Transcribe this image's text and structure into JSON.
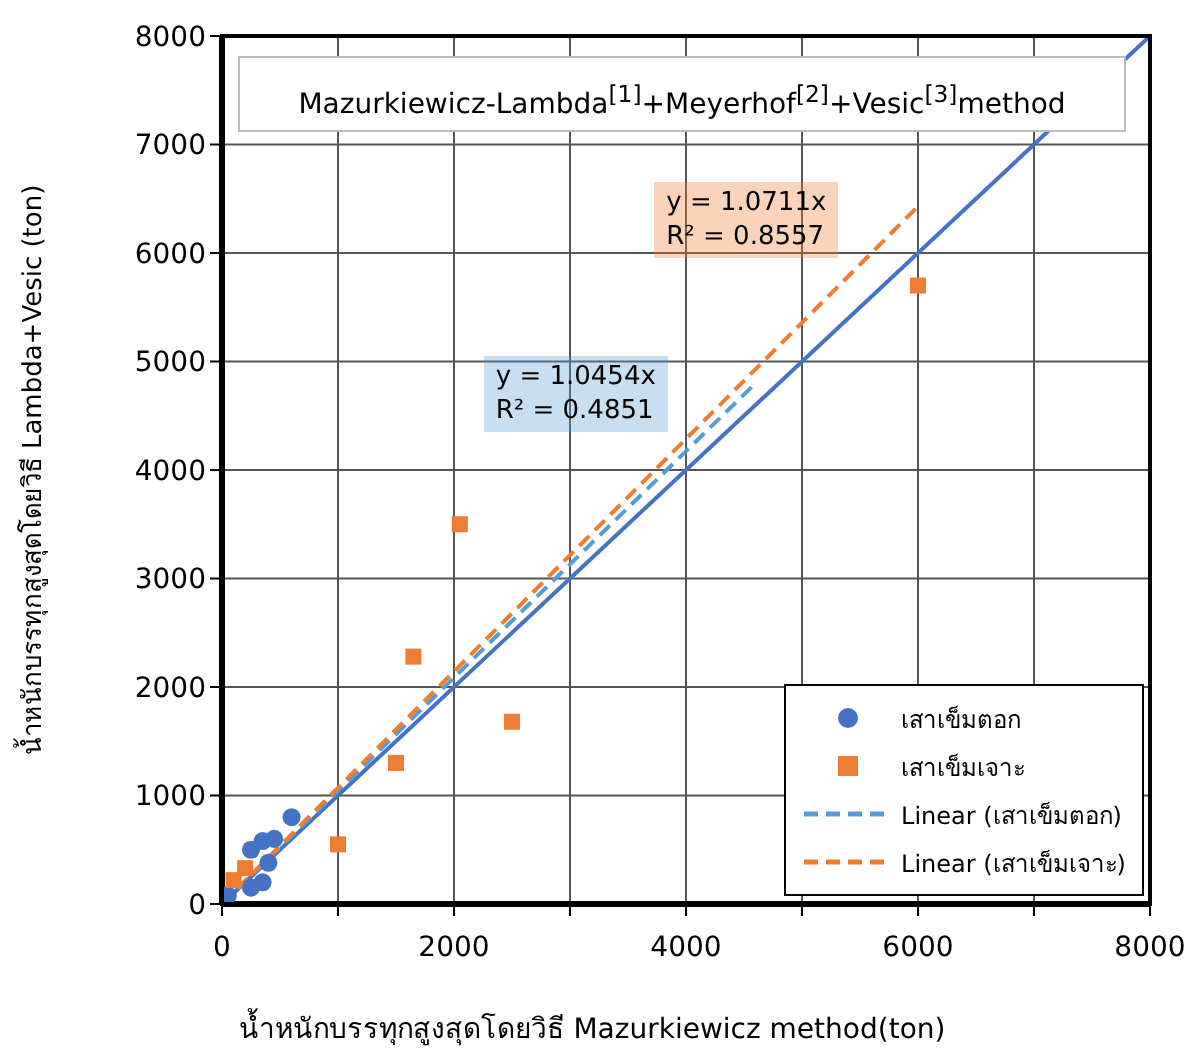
{
  "chart_data": {
    "type": "scatter",
    "title": "Mazurkiewicz-Lambda$^{[1]}$+Meyerhof$^{[2]}$+Vesic$^{[3]}$method",
    "xlabel": "น้ำหนักบรรทุกสูงสุดโดยวิธี Mazurkiewicz method(ton)",
    "ylabel": "น้ำหนักบรรทุกสูงสุดโดยวิธี Lambda+Vesic (ton)",
    "xlim": [
      0,
      8000
    ],
    "ylim": [
      0,
      8000
    ],
    "xticks": [
      0,
      {
        "value": 1000,
        "label": null
      },
      2000,
      {
        "value": 3000,
        "label": null
      },
      4000,
      {
        "value": 5000,
        "label": null
      },
      6000,
      {
        "value": 7000,
        "label": null
      },
      8000
    ],
    "yticks": [
      0,
      1000,
      2000,
      3000,
      4000,
      5000,
      6000,
      7000,
      8000
    ],
    "grid": true,
    "legend": "bottom right",
    "series": [
      {
        "name": "เสาเข็มตอก",
        "type": "scatter",
        "marker": "circle",
        "color": "#4472c4",
        "x": [
          50,
          250,
          350,
          450,
          400,
          350,
          600,
          250
        ],
        "values": [
          80,
          500,
          580,
          600,
          380,
          200,
          800,
          150
        ]
      },
      {
        "name": "เสาเข็มเจาะ",
        "type": "scatter",
        "marker": "square",
        "color": "#ed7d31",
        "x": [
          100,
          200,
          1000,
          1500,
          1650,
          2050,
          2500,
          6000
        ],
        "values": [
          220,
          330,
          550,
          1300,
          2280,
          3500,
          1680,
          5700
        ]
      },
      {
        "type": "line",
        "marker": "none",
        "line_style": "solid",
        "color": "#4472c4",
        "x": [
          0,
          8000
        ],
        "values": [
          0,
          8000
        ]
      },
      {
        "name": "Linear (เสาเข็มตอก)",
        "type": "line",
        "marker": "none",
        "line_style": "dashed",
        "color": "#5b9bd5",
        "x": [
          0,
          4600
        ],
        "values": [
          0,
          4800
        ]
      },
      {
        "name": "Linear (เสาเข็มเจาะ)",
        "type": "line",
        "marker": "none",
        "line_style": "dashed",
        "color": "#ed7d31",
        "x": [
          0,
          6000
        ],
        "values": [
          0,
          6430
        ]
      }
    ],
    "annotations": [
      "y = 1.0454x\nR² = 0.4851",
      "y = 1.0711x\nR² = 0.8557"
    ]
  }
}
